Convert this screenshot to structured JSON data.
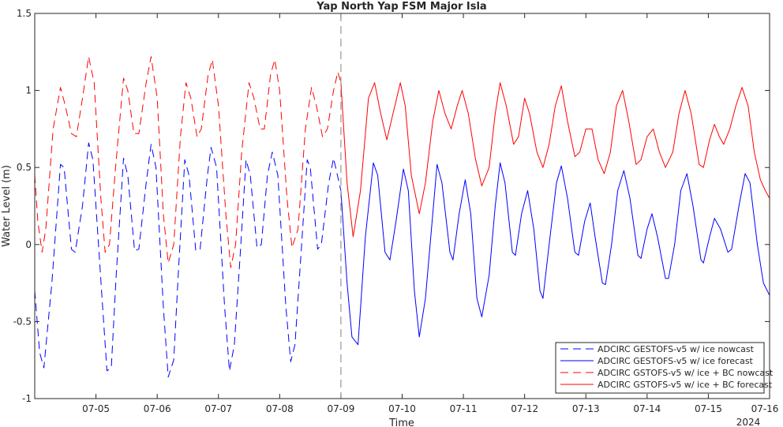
{
  "chart_data": {
    "type": "line",
    "title": "Yap North Yap FSM Major Isla",
    "xlabel": "Time",
    "ylabel": "Water Level (m)",
    "year_label": "2024",
    "xlim": [
      0,
      12
    ],
    "ylim": [
      -1,
      1.5
    ],
    "x_ticks": [
      {
        "value": 1,
        "label": "07-05"
      },
      {
        "value": 2,
        "label": "07-06"
      },
      {
        "value": 3,
        "label": "07-07"
      },
      {
        "value": 4,
        "label": "07-08"
      },
      {
        "value": 5,
        "label": "07-09"
      },
      {
        "value": 6,
        "label": "07-10"
      },
      {
        "value": 7,
        "label": "07-11"
      },
      {
        "value": 8,
        "label": "07-12"
      },
      {
        "value": 9,
        "label": "07-13"
      },
      {
        "value": 10,
        "label": "07-14"
      },
      {
        "value": 11,
        "label": "07-15"
      },
      {
        "value": 12,
        "label": "07-16"
      }
    ],
    "y_ticks": [
      {
        "value": -1,
        "label": "-1"
      },
      {
        "value": -0.5,
        "label": "-0.5"
      },
      {
        "value": 0,
        "label": "0"
      },
      {
        "value": 0.5,
        "label": "0.5"
      },
      {
        "value": 1,
        "label": "1"
      },
      {
        "value": 1.5,
        "label": "1.5"
      }
    ],
    "nowcast_forecast_divider": 5,
    "series": [
      {
        "name": "ADCIRC GESTOFS-v5 w/ ice nowcast",
        "color": "#0000ff",
        "dash": true,
        "points": [
          [
            0,
            -0.3
          ],
          [
            0.08,
            -0.7
          ],
          [
            0.15,
            -0.8
          ],
          [
            0.28,
            -0.25
          ],
          [
            0.42,
            0.52
          ],
          [
            0.48,
            0.5
          ],
          [
            0.6,
            -0.03
          ],
          [
            0.66,
            -0.05
          ],
          [
            0.78,
            0.25
          ],
          [
            0.88,
            0.66
          ],
          [
            0.95,
            0.55
          ],
          [
            1.1,
            -0.35
          ],
          [
            1.18,
            -0.82
          ],
          [
            1.25,
            -0.8
          ],
          [
            1.33,
            -0.2
          ],
          [
            1.45,
            0.56
          ],
          [
            1.52,
            0.45
          ],
          [
            1.63,
            -0.04
          ],
          [
            1.7,
            -0.03
          ],
          [
            1.82,
            0.4
          ],
          [
            1.9,
            0.65
          ],
          [
            1.98,
            0.5
          ],
          [
            2.1,
            -0.4
          ],
          [
            2.18,
            -0.86
          ],
          [
            2.27,
            -0.75
          ],
          [
            2.35,
            -0.15
          ],
          [
            2.45,
            0.55
          ],
          [
            2.52,
            0.45
          ],
          [
            2.63,
            -0.04
          ],
          [
            2.7,
            -0.03
          ],
          [
            2.82,
            0.45
          ],
          [
            2.88,
            0.63
          ],
          [
            2.97,
            0.5
          ],
          [
            3.1,
            -0.4
          ],
          [
            3.18,
            -0.82
          ],
          [
            3.26,
            -0.65
          ],
          [
            3.35,
            -0.1
          ],
          [
            3.45,
            0.55
          ],
          [
            3.52,
            0.45
          ],
          [
            3.63,
            -0.02
          ],
          [
            3.7,
            0.0
          ],
          [
            3.8,
            0.45
          ],
          [
            3.88,
            0.6
          ],
          [
            3.97,
            0.45
          ],
          [
            4.1,
            -0.4
          ],
          [
            4.18,
            -0.76
          ],
          [
            4.25,
            -0.65
          ],
          [
            4.35,
            -0.05
          ],
          [
            4.45,
            0.55
          ],
          [
            4.5,
            0.5
          ],
          [
            4.62,
            -0.03
          ],
          [
            4.68,
            0.0
          ],
          [
            4.8,
            0.4
          ],
          [
            4.88,
            0.56
          ],
          [
            5.0,
            0.35
          ]
        ]
      },
      {
        "name": "ADCIRC GESTOFS-v5 w/ ice forecast",
        "color": "#0000ff",
        "dash": false,
        "points": [
          [
            5.0,
            0.35
          ],
          [
            5.1,
            -0.25
          ],
          [
            5.18,
            -0.6
          ],
          [
            5.28,
            -0.65
          ],
          [
            5.4,
            0.05
          ],
          [
            5.53,
            0.53
          ],
          [
            5.6,
            0.45
          ],
          [
            5.72,
            -0.05
          ],
          [
            5.8,
            -0.1
          ],
          [
            5.9,
            0.15
          ],
          [
            6.02,
            0.49
          ],
          [
            6.1,
            0.35
          ],
          [
            6.2,
            -0.3
          ],
          [
            6.28,
            -0.6
          ],
          [
            6.38,
            -0.35
          ],
          [
            6.5,
            0.2
          ],
          [
            6.57,
            0.52
          ],
          [
            6.65,
            0.4
          ],
          [
            6.78,
            -0.05
          ],
          [
            6.83,
            -0.1
          ],
          [
            6.93,
            0.2
          ],
          [
            7.03,
            0.42
          ],
          [
            7.12,
            0.2
          ],
          [
            7.22,
            -0.35
          ],
          [
            7.3,
            -0.47
          ],
          [
            7.42,
            -0.2
          ],
          [
            7.52,
            0.25
          ],
          [
            7.6,
            0.53
          ],
          [
            7.68,
            0.4
          ],
          [
            7.8,
            -0.05
          ],
          [
            7.85,
            -0.07
          ],
          [
            7.95,
            0.2
          ],
          [
            8.05,
            0.35
          ],
          [
            8.15,
            0.1
          ],
          [
            8.25,
            -0.3
          ],
          [
            8.3,
            -0.35
          ],
          [
            8.4,
            0.0
          ],
          [
            8.52,
            0.4
          ],
          [
            8.6,
            0.51
          ],
          [
            8.7,
            0.3
          ],
          [
            8.82,
            -0.05
          ],
          [
            8.88,
            -0.07
          ],
          [
            8.98,
            0.15
          ],
          [
            9.07,
            0.27
          ],
          [
            9.15,
            0.05
          ],
          [
            9.27,
            -0.25
          ],
          [
            9.32,
            -0.26
          ],
          [
            9.42,
            0.0
          ],
          [
            9.52,
            0.35
          ],
          [
            9.62,
            0.48
          ],
          [
            9.72,
            0.3
          ],
          [
            9.85,
            -0.07
          ],
          [
            9.9,
            -0.09
          ],
          [
            10.0,
            0.1
          ],
          [
            10.08,
            0.2
          ],
          [
            10.17,
            0.05
          ],
          [
            10.3,
            -0.22
          ],
          [
            10.35,
            -0.22
          ],
          [
            10.45,
            0.0
          ],
          [
            10.55,
            0.35
          ],
          [
            10.65,
            0.46
          ],
          [
            10.75,
            0.25
          ],
          [
            10.88,
            -0.1
          ],
          [
            10.92,
            -0.12
          ],
          [
            11.02,
            0.05
          ],
          [
            11.1,
            0.17
          ],
          [
            11.2,
            0.1
          ],
          [
            11.32,
            -0.05
          ],
          [
            11.38,
            -0.03
          ],
          [
            11.5,
            0.25
          ],
          [
            11.6,
            0.46
          ],
          [
            11.68,
            0.4
          ],
          [
            11.8,
            0.0
          ],
          [
            11.9,
            -0.25
          ],
          [
            12.0,
            -0.33
          ]
        ]
      },
      {
        "name": "ADCIRC GSTOFS-v5 w/ ice + BC nowcast",
        "color": "#ff0000",
        "dash": true,
        "points": [
          [
            0,
            0.45
          ],
          [
            0.05,
            0.15
          ],
          [
            0.12,
            -0.05
          ],
          [
            0.18,
            0.1
          ],
          [
            0.3,
            0.75
          ],
          [
            0.42,
            1.02
          ],
          [
            0.5,
            0.9
          ],
          [
            0.6,
            0.72
          ],
          [
            0.68,
            0.7
          ],
          [
            0.78,
            0.95
          ],
          [
            0.88,
            1.22
          ],
          [
            0.97,
            1.05
          ],
          [
            1.08,
            0.3
          ],
          [
            1.15,
            -0.05
          ],
          [
            1.22,
            0.0
          ],
          [
            1.32,
            0.5
          ],
          [
            1.45,
            1.08
          ],
          [
            1.52,
            1.0
          ],
          [
            1.62,
            0.72
          ],
          [
            1.7,
            0.72
          ],
          [
            1.82,
            1.05
          ],
          [
            1.9,
            1.22
          ],
          [
            2.0,
            0.95
          ],
          [
            2.1,
            0.2
          ],
          [
            2.18,
            -0.12
          ],
          [
            2.27,
            0.0
          ],
          [
            2.38,
            0.7
          ],
          [
            2.47,
            1.05
          ],
          [
            2.55,
            0.95
          ],
          [
            2.65,
            0.7
          ],
          [
            2.72,
            0.75
          ],
          [
            2.83,
            1.1
          ],
          [
            2.9,
            1.2
          ],
          [
            3.0,
            0.9
          ],
          [
            3.12,
            0.2
          ],
          [
            3.2,
            -0.15
          ],
          [
            3.28,
            0.0
          ],
          [
            3.38,
            0.6
          ],
          [
            3.5,
            1.05
          ],
          [
            3.58,
            0.95
          ],
          [
            3.68,
            0.75
          ],
          [
            3.75,
            0.75
          ],
          [
            3.85,
            1.1
          ],
          [
            3.92,
            1.2
          ],
          [
            4.0,
            1.0
          ],
          [
            4.12,
            0.3
          ],
          [
            4.2,
            -0.02
          ],
          [
            4.3,
            0.1
          ],
          [
            4.42,
            0.75
          ],
          [
            4.52,
            1.02
          ],
          [
            4.6,
            0.9
          ],
          [
            4.7,
            0.7
          ],
          [
            4.78,
            0.75
          ],
          [
            4.88,
            1.0
          ],
          [
            4.95,
            1.12
          ],
          [
            5.0,
            1.05
          ]
        ]
      },
      {
        "name": "ADCIRC GSTOFS-v5 w/ ice + BC forecast",
        "color": "#ff0000",
        "dash": false,
        "points": [
          [
            5.0,
            1.05
          ],
          [
            5.1,
            0.4
          ],
          [
            5.2,
            0.05
          ],
          [
            5.32,
            0.35
          ],
          [
            5.45,
            0.95
          ],
          [
            5.55,
            1.05
          ],
          [
            5.65,
            0.85
          ],
          [
            5.75,
            0.68
          ],
          [
            5.85,
            0.85
          ],
          [
            5.97,
            1.05
          ],
          [
            6.05,
            0.9
          ],
          [
            6.15,
            0.45
          ],
          [
            6.28,
            0.2
          ],
          [
            6.38,
            0.4
          ],
          [
            6.5,
            0.8
          ],
          [
            6.6,
            1.0
          ],
          [
            6.7,
            0.85
          ],
          [
            6.8,
            0.75
          ],
          [
            6.9,
            0.9
          ],
          [
            6.98,
            1.0
          ],
          [
            7.08,
            0.85
          ],
          [
            7.2,
            0.55
          ],
          [
            7.3,
            0.38
          ],
          [
            7.42,
            0.5
          ],
          [
            7.52,
            0.85
          ],
          [
            7.6,
            1.05
          ],
          [
            7.7,
            0.9
          ],
          [
            7.82,
            0.65
          ],
          [
            7.9,
            0.7
          ],
          [
            8.0,
            0.95
          ],
          [
            8.08,
            0.85
          ],
          [
            8.2,
            0.6
          ],
          [
            8.3,
            0.5
          ],
          [
            8.4,
            0.65
          ],
          [
            8.5,
            0.9
          ],
          [
            8.6,
            1.03
          ],
          [
            8.7,
            0.8
          ],
          [
            8.82,
            0.57
          ],
          [
            8.9,
            0.6
          ],
          [
            9.0,
            0.75
          ],
          [
            9.1,
            0.75
          ],
          [
            9.2,
            0.55
          ],
          [
            9.3,
            0.46
          ],
          [
            9.4,
            0.6
          ],
          [
            9.5,
            0.9
          ],
          [
            9.6,
            1.0
          ],
          [
            9.7,
            0.8
          ],
          [
            9.82,
            0.52
          ],
          [
            9.9,
            0.55
          ],
          [
            10.0,
            0.7
          ],
          [
            10.1,
            0.75
          ],
          [
            10.2,
            0.6
          ],
          [
            10.3,
            0.5
          ],
          [
            10.42,
            0.6
          ],
          [
            10.52,
            0.85
          ],
          [
            10.62,
            1.0
          ],
          [
            10.72,
            0.85
          ],
          [
            10.85,
            0.52
          ],
          [
            10.92,
            0.5
          ],
          [
            11.02,
            0.68
          ],
          [
            11.1,
            0.78
          ],
          [
            11.18,
            0.7
          ],
          [
            11.25,
            0.65
          ],
          [
            11.35,
            0.75
          ],
          [
            11.45,
            0.9
          ],
          [
            11.55,
            1.02
          ],
          [
            11.65,
            0.9
          ],
          [
            11.75,
            0.6
          ],
          [
            11.85,
            0.42
          ],
          [
            11.93,
            0.35
          ],
          [
            12.0,
            0.3
          ]
        ]
      }
    ],
    "legend_position": "bottom-right"
  }
}
